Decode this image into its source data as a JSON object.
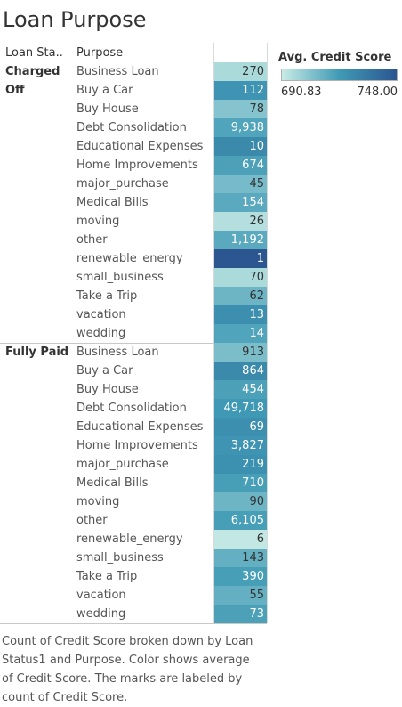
{
  "chart_data": {
    "type": "table",
    "title": "Loan Purpose",
    "columns": {
      "group": "Loan Sta..",
      "category": "Purpose"
    },
    "legend": {
      "title": "Avg. Credit Score",
      "min_label": "690.83",
      "max_label": "748.00",
      "min": 690.83,
      "max": 748.0,
      "min_color": "#c9ebe6",
      "max_color": "#2b5690",
      "placement": "top-right"
    },
    "groups": [
      {
        "label": "Charged Off",
        "rows": [
          {
            "purpose": "Business Loan",
            "count": 270,
            "label": "270",
            "avg_credit_score": 697
          },
          {
            "purpose": "Buy a Car",
            "count": 112,
            "label": "112",
            "avg_credit_score": 722
          },
          {
            "purpose": "Buy House",
            "count": 78,
            "label": "78",
            "avg_credit_score": 705
          },
          {
            "purpose": "Debt Consolidation",
            "count": 9938,
            "label": "9,938",
            "avg_credit_score": 716
          },
          {
            "purpose": "Educational Expenses",
            "count": 10,
            "label": "10",
            "avg_credit_score": 726
          },
          {
            "purpose": "Home Improvements",
            "count": 674,
            "label": "674",
            "avg_credit_score": 717
          },
          {
            "purpose": "major_purchase",
            "count": 45,
            "label": "45",
            "avg_credit_score": 708
          },
          {
            "purpose": "Medical Bills",
            "count": 154,
            "label": "154",
            "avg_credit_score": 714
          },
          {
            "purpose": "moving",
            "count": 26,
            "label": "26",
            "avg_credit_score": 695
          },
          {
            "purpose": "other",
            "count": 1192,
            "label": "1,192",
            "avg_credit_score": 714
          },
          {
            "purpose": "renewable_energy",
            "count": 1,
            "label": "1",
            "avg_credit_score": 748
          },
          {
            "purpose": "small_business",
            "count": 70,
            "label": "70",
            "avg_credit_score": 697
          },
          {
            "purpose": "Take a Trip",
            "count": 62,
            "label": "62",
            "avg_credit_score": 710
          },
          {
            "purpose": "vacation",
            "count": 13,
            "label": "13",
            "avg_credit_score": 724
          },
          {
            "purpose": "wedding",
            "count": 14,
            "label": "14",
            "avg_credit_score": 716
          }
        ]
      },
      {
        "label": "Fully Paid",
        "rows": [
          {
            "purpose": "Business Loan",
            "count": 913,
            "label": "913",
            "avg_credit_score": 707
          },
          {
            "purpose": "Buy a Car",
            "count": 864,
            "label": "864",
            "avg_credit_score": 726
          },
          {
            "purpose": "Buy House",
            "count": 454,
            "label": "454",
            "avg_credit_score": 717
          },
          {
            "purpose": "Debt Consolidation",
            "count": 49718,
            "label": "49,718",
            "avg_credit_score": 720
          },
          {
            "purpose": "Educational Expenses",
            "count": 69,
            "label": "69",
            "avg_credit_score": 724
          },
          {
            "purpose": "Home Improvements",
            "count": 3827,
            "label": "3,827",
            "avg_credit_score": 722
          },
          {
            "purpose": "major_purchase",
            "count": 219,
            "label": "219",
            "avg_credit_score": 723
          },
          {
            "purpose": "Medical Bills",
            "count": 710,
            "label": "710",
            "avg_credit_score": 718
          },
          {
            "purpose": "moving",
            "count": 90,
            "label": "90",
            "avg_credit_score": 710
          },
          {
            "purpose": "other",
            "count": 6105,
            "label": "6,105",
            "avg_credit_score": 718
          },
          {
            "purpose": "renewable_energy",
            "count": 6,
            "label": "6",
            "avg_credit_score": 692
          },
          {
            "purpose": "small_business",
            "count": 143,
            "label": "143",
            "avg_credit_score": 712
          },
          {
            "purpose": "Take a Trip",
            "count": 390,
            "label": "390",
            "avg_credit_score": 718
          },
          {
            "purpose": "vacation",
            "count": 55,
            "label": "55",
            "avg_credit_score": 712
          },
          {
            "purpose": "wedding",
            "count": 73,
            "label": "73",
            "avg_credit_score": 717
          }
        ]
      }
    ],
    "caption": "Count of Credit Score broken down by Loan Status1 and Purpose.  Color shows average of Credit Score.  The marks are labeled by count of Credit Score."
  }
}
